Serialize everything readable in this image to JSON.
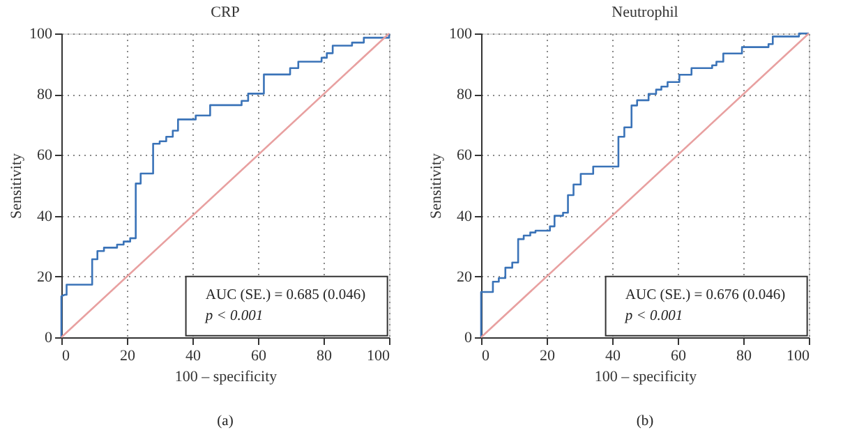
{
  "chart_data": [
    {
      "type": "line",
      "title": "CRP",
      "xlabel": "100 – specificity",
      "ylabel": "Sensitivity",
      "xlim": [
        0,
        100
      ],
      "ylim": [
        0,
        100
      ],
      "xticks": [
        0,
        20,
        40,
        60,
        80,
        100
      ],
      "yticks": [
        0,
        20,
        40,
        60,
        80,
        100
      ],
      "grid": true,
      "series": [
        {
          "color": "#3a73b8",
          "x": [
            0,
            0,
            1,
            1.6,
            1.6,
            9.4,
            9.4,
            11,
            11,
            13,
            13,
            17,
            17,
            19,
            19,
            21,
            21,
            22.7,
            22.7,
            24.2,
            24.2,
            28,
            28,
            30,
            30,
            32,
            32,
            34,
            34,
            35.6,
            35.6,
            41,
            41,
            45.4,
            45.4,
            55,
            55,
            57,
            57,
            61.8,
            61.8,
            69.8,
            69.8,
            72.3,
            72.3,
            79.4,
            79.4,
            81,
            81,
            82.8,
            82.8,
            88.7,
            88.7,
            92.3,
            92.3,
            100,
            100
          ],
          "values": [
            0,
            13.5,
            14,
            14,
            17.3,
            17.3,
            25.7,
            25.7,
            28.4,
            28.4,
            29.5,
            29.5,
            30.5,
            30.5,
            31.5,
            31.5,
            32.6,
            32.6,
            50.6,
            50.6,
            53.9,
            53.9,
            63.7,
            63.7,
            64.5,
            64.5,
            66,
            66,
            68,
            68,
            71.7,
            71.7,
            73,
            73,
            76.4,
            76.4,
            77.8,
            77.8,
            80.2,
            80.2,
            86.5,
            86.5,
            88.6,
            88.6,
            90.7,
            90.7,
            92,
            92,
            93.5,
            93.5,
            96,
            96,
            97,
            97,
            98.6,
            98.6,
            100
          ]
        },
        {
          "color": "#e8a0a0",
          "x": [
            0,
            100
          ],
          "values": [
            0,
            100
          ]
        }
      ],
      "annotations": [
        "AUC (SE.) = 0.685 (0.046)",
        "p < 0.001",
        "(a)"
      ]
    },
    {
      "type": "line",
      "title": "Neutrophil",
      "xlabel": "100 – specificity",
      "ylabel": "Sensitivity",
      "xlim": [
        0,
        100
      ],
      "ylim": [
        0,
        100
      ],
      "xticks": [
        0,
        20,
        40,
        60,
        80,
        100
      ],
      "yticks": [
        0,
        20,
        40,
        60,
        80,
        100
      ],
      "grid": true,
      "series": [
        {
          "color": "#3a73b8",
          "x": [
            0,
            0,
            3.6,
            3.6,
            5.4,
            5.4,
            7.4,
            7.4,
            9.5,
            9.5,
            11.3,
            11.3,
            13,
            13,
            15,
            15,
            16.6,
            16.6,
            21,
            21,
            22.4,
            22.4,
            25,
            25,
            26.5,
            26.5,
            28.2,
            28.2,
            30.4,
            30.4,
            34.2,
            34.2,
            41.9,
            41.9,
            43.7,
            43.7,
            45.9,
            45.9,
            47.6,
            47.6,
            51.1,
            51.1,
            53.4,
            53.4,
            55,
            55,
            56.9,
            56.9,
            60.5,
            60.5,
            64.2,
            64.2,
            70.5,
            70.5,
            71.8,
            71.8,
            73.9,
            73.9,
            79.6,
            79.6,
            87.7,
            87.7,
            89,
            89,
            97,
            97,
            100
          ],
          "values": [
            0,
            14.9,
            14.9,
            18.3,
            18.3,
            19.5,
            19.5,
            22.9,
            22.9,
            24.6,
            24.6,
            32.3,
            32.3,
            33.5,
            33.5,
            34.5,
            34.5,
            35.1,
            35.1,
            36.5,
            36.5,
            40,
            40,
            41,
            41,
            46.8,
            46.8,
            50.3,
            50.3,
            53.8,
            53.8,
            56.2,
            56.2,
            66,
            66,
            69.1,
            69.1,
            76.3,
            76.3,
            78,
            78,
            80.1,
            80.1,
            81.5,
            81.5,
            82.5,
            82.5,
            84,
            84,
            86.4,
            86.4,
            88.6,
            88.6,
            89.5,
            89.5,
            90.7,
            90.7,
            93.4,
            93.4,
            95.5,
            95.5,
            96.5,
            96.5,
            99,
            99,
            100,
            100
          ]
        },
        {
          "color": "#e8a0a0",
          "x": [
            0,
            100
          ],
          "values": [
            0,
            100
          ]
        }
      ],
      "annotations": [
        "AUC (SE.) = 0.676 (0.046)",
        "p < 0.001",
        "(b)"
      ]
    }
  ]
}
